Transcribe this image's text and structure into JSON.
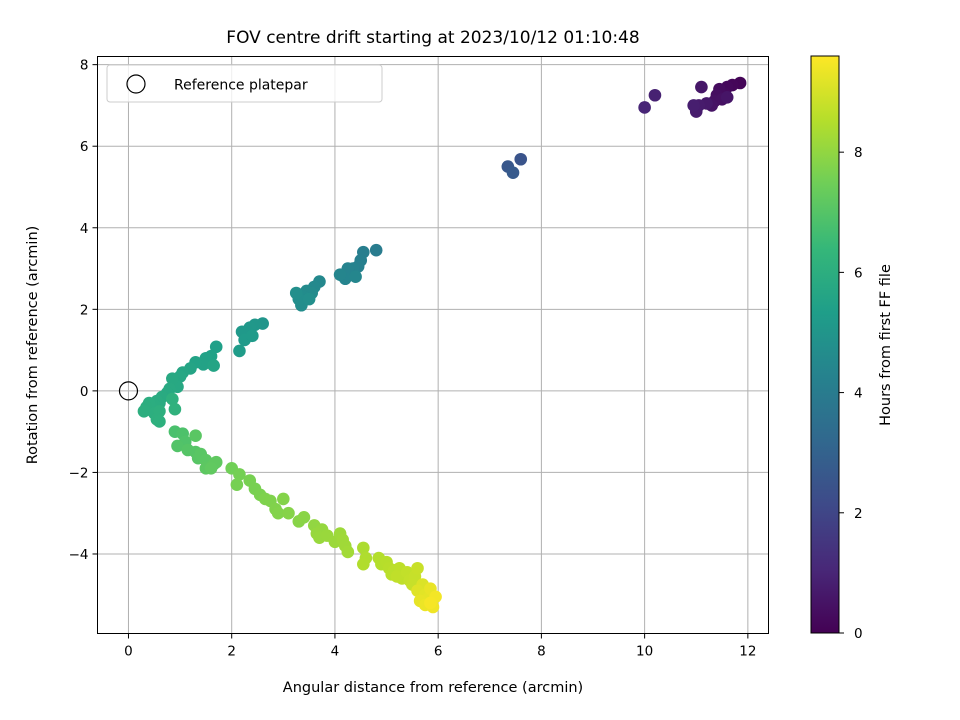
{
  "chart_data": {
    "type": "scatter",
    "title": "FOV centre drift starting at 2023/10/12 01:10:48",
    "xlabel": "Angular distance from reference (arcmin)",
    "ylabel": "Rotation from reference (arcmin)",
    "xlim": [
      -0.6,
      12.4
    ],
    "ylim": [
      -5.95,
      8.2
    ],
    "x_ticks": [
      0,
      2,
      4,
      6,
      8,
      10,
      12
    ],
    "x_tick_labels": [
      "0",
      "2",
      "4",
      "6",
      "8",
      "10",
      "12"
    ],
    "y_ticks": [
      -4,
      -2,
      0,
      2,
      4,
      6,
      8
    ],
    "y_tick_labels": [
      "−4",
      "−2",
      "0",
      "2",
      "4",
      "6",
      "8"
    ],
    "grid": true,
    "legend": {
      "placement": "top-left",
      "entries": [
        "Reference platepar"
      ]
    },
    "reference_point": {
      "x": 0,
      "y": 0
    },
    "colorbar": {
      "label": "Hours from first FF file",
      "colormap": "viridis",
      "range": [
        0,
        9.6
      ],
      "ticks": [
        0,
        2,
        4,
        6,
        8
      ],
      "tick_labels": [
        "0",
        "2",
        "4",
        "6",
        "8"
      ]
    },
    "series": [
      {
        "points": [
          [
            11.85,
            7.55,
            0.1
          ],
          [
            11.7,
            7.5,
            0.15
          ],
          [
            11.6,
            7.45,
            0.2
          ],
          [
            11.55,
            7.3,
            0.25
          ],
          [
            11.45,
            7.4,
            0.3
          ],
          [
            11.4,
            7.25,
            0.35
          ],
          [
            11.35,
            7.1,
            0.4
          ],
          [
            11.5,
            7.15,
            0.45
          ],
          [
            11.3,
            7.0,
            0.5
          ],
          [
            11.6,
            7.2,
            0.55
          ],
          [
            11.1,
            7.45,
            0.6
          ],
          [
            11.2,
            7.05,
            0.65
          ],
          [
            11.05,
            7.0,
            0.7
          ],
          [
            11.0,
            6.85,
            0.75
          ],
          [
            10.95,
            7.0,
            0.8
          ],
          [
            10.2,
            7.25,
            0.9
          ],
          [
            10.0,
            6.95,
            1.0
          ],
          [
            7.6,
            5.68,
            2.5
          ],
          [
            7.35,
            5.5,
            2.6
          ],
          [
            7.45,
            5.35,
            2.7
          ],
          [
            4.8,
            3.45,
            4.0
          ],
          [
            4.55,
            3.4,
            4.1
          ],
          [
            4.5,
            3.2,
            4.15
          ],
          [
            4.45,
            3.05,
            4.2
          ],
          [
            4.35,
            3.0,
            4.25
          ],
          [
            4.3,
            2.85,
            4.3
          ],
          [
            4.25,
            3.0,
            4.32
          ],
          [
            4.2,
            2.75,
            4.35
          ],
          [
            4.1,
            2.85,
            4.38
          ],
          [
            4.4,
            2.8,
            4.4
          ],
          [
            3.7,
            2.68,
            4.5
          ],
          [
            3.6,
            2.55,
            4.55
          ],
          [
            3.55,
            2.4,
            4.6
          ],
          [
            3.45,
            2.45,
            4.62
          ],
          [
            3.4,
            2.3,
            4.65
          ],
          [
            3.35,
            2.1,
            4.7
          ],
          [
            3.3,
            2.25,
            4.72
          ],
          [
            3.25,
            2.4,
            4.75
          ],
          [
            3.5,
            2.25,
            4.78
          ],
          [
            2.6,
            1.65,
            5.0
          ],
          [
            2.45,
            1.62,
            5.05
          ],
          [
            2.35,
            1.55,
            5.1
          ],
          [
            2.3,
            1.45,
            5.12
          ],
          [
            2.2,
            1.45,
            5.15
          ],
          [
            2.25,
            1.25,
            5.2
          ],
          [
            2.15,
            0.98,
            5.25
          ],
          [
            2.4,
            1.35,
            5.22
          ],
          [
            1.7,
            1.08,
            5.4
          ],
          [
            1.6,
            0.85,
            5.45
          ],
          [
            1.5,
            0.8,
            5.5
          ],
          [
            1.45,
            0.65,
            5.52
          ],
          [
            1.3,
            0.7,
            5.55
          ],
          [
            1.65,
            0.62,
            5.58
          ],
          [
            1.2,
            0.55,
            5.6
          ],
          [
            1.05,
            0.45,
            5.65
          ],
          [
            1.0,
            0.35,
            5.7
          ],
          [
            0.9,
            0.2,
            5.72
          ],
          [
            0.95,
            0.1,
            5.75
          ],
          [
            0.85,
            0.3,
            5.78
          ],
          [
            0.8,
            0.05,
            5.8
          ],
          [
            0.75,
            -0.05,
            5.82
          ],
          [
            0.65,
            -0.15,
            5.85
          ],
          [
            0.6,
            -0.3,
            5.88
          ],
          [
            0.55,
            -0.25,
            5.9
          ],
          [
            0.5,
            -0.35,
            5.92
          ],
          [
            0.45,
            -0.4,
            5.94
          ],
          [
            0.4,
            -0.3,
            5.96
          ],
          [
            0.35,
            -0.4,
            5.98
          ],
          [
            0.3,
            -0.5,
            6.0
          ],
          [
            0.5,
            -0.55,
            6.02
          ],
          [
            0.6,
            -0.5,
            6.04
          ],
          [
            0.55,
            -0.7,
            6.06
          ],
          [
            0.6,
            -0.75,
            6.08
          ],
          [
            0.85,
            -0.2,
            6.1
          ],
          [
            0.9,
            -0.45,
            6.15
          ],
          [
            0.9,
            -1.0,
            6.8
          ],
          [
            1.05,
            -1.05,
            6.85
          ],
          [
            1.1,
            -1.25,
            6.9
          ],
          [
            0.95,
            -1.35,
            6.95
          ],
          [
            1.15,
            -1.45,
            7.0
          ],
          [
            1.3,
            -1.5,
            7.02
          ],
          [
            1.35,
            -1.65,
            7.05
          ],
          [
            1.4,
            -1.55,
            7.08
          ],
          [
            1.3,
            -1.1,
            7.1
          ],
          [
            1.5,
            -1.7,
            7.12
          ],
          [
            1.5,
            -1.9,
            7.15
          ],
          [
            1.65,
            -1.8,
            7.18
          ],
          [
            1.7,
            -1.75,
            7.2
          ],
          [
            1.6,
            -1.9,
            7.22
          ],
          [
            2.0,
            -1.9,
            7.5
          ],
          [
            2.15,
            -2.05,
            7.55
          ],
          [
            2.1,
            -2.3,
            7.58
          ],
          [
            2.35,
            -2.2,
            7.6
          ],
          [
            2.45,
            -2.4,
            7.62
          ],
          [
            2.55,
            -2.55,
            7.65
          ],
          [
            2.65,
            -2.65,
            7.7
          ],
          [
            2.75,
            -2.7,
            7.72
          ],
          [
            2.85,
            -2.9,
            7.75
          ],
          [
            2.9,
            -3.0,
            7.78
          ],
          [
            3.0,
            -2.65,
            7.8
          ],
          [
            3.1,
            -3.0,
            7.82
          ],
          [
            3.3,
            -3.2,
            7.85
          ],
          [
            3.4,
            -3.1,
            7.88
          ],
          [
            3.6,
            -3.3,
            8.0
          ],
          [
            3.75,
            -3.4,
            8.05
          ],
          [
            3.65,
            -3.5,
            8.08
          ],
          [
            3.7,
            -3.6,
            8.1
          ],
          [
            3.85,
            -3.55,
            8.12
          ],
          [
            4.0,
            -3.7,
            8.15
          ],
          [
            4.1,
            -3.5,
            8.18
          ],
          [
            4.15,
            -3.65,
            8.2
          ],
          [
            4.2,
            -3.8,
            8.22
          ],
          [
            4.25,
            -3.95,
            8.25
          ],
          [
            4.55,
            -3.85,
            8.4
          ],
          [
            4.6,
            -4.1,
            8.45
          ],
          [
            4.55,
            -4.25,
            8.48
          ],
          [
            4.85,
            -4.1,
            8.5
          ],
          [
            4.9,
            -4.25,
            8.52
          ],
          [
            5.0,
            -4.2,
            8.55
          ],
          [
            5.05,
            -4.35,
            8.58
          ],
          [
            5.1,
            -4.5,
            8.6
          ],
          [
            5.15,
            -4.4,
            8.62
          ],
          [
            5.25,
            -4.35,
            8.65
          ],
          [
            5.3,
            -4.6,
            8.68
          ],
          [
            5.2,
            -4.55,
            8.7
          ],
          [
            5.4,
            -4.45,
            8.72
          ],
          [
            5.45,
            -4.65,
            8.75
          ],
          [
            5.55,
            -4.55,
            8.78
          ],
          [
            5.5,
            -4.75,
            8.8
          ],
          [
            5.6,
            -4.35,
            8.82
          ],
          [
            5.7,
            -4.75,
            9.1
          ],
          [
            5.6,
            -4.9,
            9.15
          ],
          [
            5.75,
            -5.0,
            9.2
          ],
          [
            5.8,
            -5.1,
            9.25
          ],
          [
            5.65,
            -5.15,
            9.28
          ],
          [
            5.85,
            -4.85,
            9.3
          ],
          [
            5.75,
            -5.25,
            9.35
          ],
          [
            5.9,
            -5.3,
            9.4
          ],
          [
            5.95,
            -5.05,
            9.45
          ],
          [
            5.85,
            -5.2,
            9.5
          ]
        ]
      }
    ]
  }
}
